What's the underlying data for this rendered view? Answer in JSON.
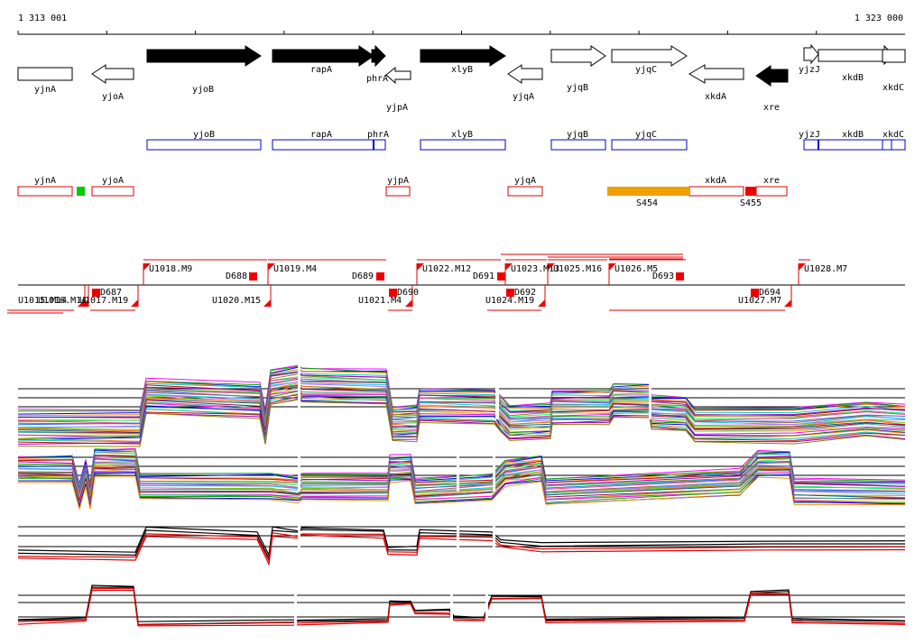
{
  "coords": {
    "start": "1 313 001",
    "end": "1 323 000"
  },
  "genes": [
    {
      "label": "yjnA",
      "dir": "none",
      "filled": false
    },
    {
      "label": "yjoA",
      "dir": "left",
      "filled": false
    },
    {
      "label": "yjoB",
      "dir": "right",
      "filled": true
    },
    {
      "label": "rapA",
      "dir": "right",
      "filled": true
    },
    {
      "label": "phrA",
      "dir": "right",
      "filled": true
    },
    {
      "label": "yjpA",
      "dir": "left",
      "filled": false
    },
    {
      "label": "xlyB",
      "dir": "right",
      "filled": true
    },
    {
      "label": "yjqA",
      "dir": "left",
      "filled": false
    },
    {
      "label": "yjqB",
      "dir": "right",
      "filled": false
    },
    {
      "label": "yjqC",
      "dir": "right",
      "filled": false
    },
    {
      "label": "xkdA",
      "dir": "left",
      "filled": false
    },
    {
      "label": "xre",
      "dir": "left",
      "filled": true
    },
    {
      "label": "yjzJ",
      "dir": "right",
      "filled": false
    },
    {
      "label": "xkdB",
      "dir": "right",
      "filled": false
    },
    {
      "label": "xkdC",
      "dir": "right",
      "filled": false
    }
  ],
  "operons_blue": [
    "yjoB",
    "rapA",
    "phrA",
    "xlyB",
    "yjqB",
    "yjqC",
    "yjzJ",
    "xkdB",
    "xkdC"
  ],
  "operons_red": [
    "yjnA",
    "yjoA",
    "yjpA",
    "yjqA",
    "xkdA",
    "xre"
  ],
  "segments": [
    "S454",
    "S455"
  ],
  "segment_colors": {
    "S454": "#f0a000",
    "S455": "#ee0000",
    "green_marker": "#00cc00"
  },
  "upshifts_top": [
    "U1018.M9",
    "U1019.M4",
    "U1022.M12",
    "U1023.M13",
    "U1025.M16",
    "U1026.M5",
    "U1028.M7"
  ],
  "upshifts_bottom": [
    "U1015.M14",
    "U1016.M14",
    "U1017.M19",
    "U1020.M15",
    "U1021.M4",
    "U1024.M19",
    "U1027.M7"
  ],
  "downshifts_top": [
    "D687",
    "D688",
    "D689",
    "D690",
    "D691"
  ],
  "downshifts_bottom": [
    "D692",
    "D693",
    "D694"
  ],
  "colors": {
    "gene_fill": "#000000",
    "blue": "#0000cc",
    "red": "#dd0000"
  }
}
